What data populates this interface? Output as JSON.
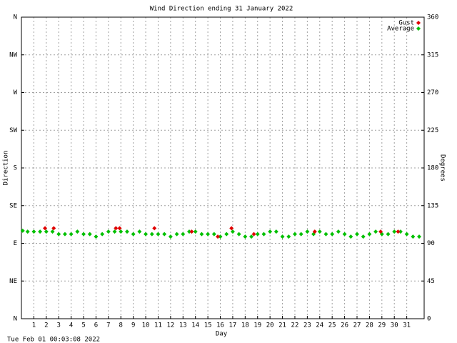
{
  "chart_data": {
    "type": "scatter",
    "title": "Wind Direction ending 31 January 2022",
    "xlabel": "Day",
    "ylabel": "Direction",
    "y2label": "Degrees",
    "footer": "Tue Feb 01 00:03:08 2022",
    "xlim": [
      0,
      32.4
    ],
    "xticks": [
      1,
      2,
      3,
      4,
      5,
      6,
      7,
      8,
      9,
      10,
      11,
      12,
      13,
      14,
      15,
      16,
      17,
      18,
      19,
      20,
      21,
      22,
      23,
      24,
      25,
      26,
      27,
      28,
      29,
      30,
      31
    ],
    "ylim": [
      0,
      360
    ],
    "yticks": [
      {
        "value": 0,
        "label": "N"
      },
      {
        "value": 45,
        "label": "NE"
      },
      {
        "value": 90,
        "label": "E"
      },
      {
        "value": 135,
        "label": "SE"
      },
      {
        "value": 180,
        "label": "S"
      },
      {
        "value": 225,
        "label": "SW"
      },
      {
        "value": 270,
        "label": "W"
      },
      {
        "value": 315,
        "label": "NW"
      },
      {
        "value": 360,
        "label": "N"
      }
    ],
    "y2lim": [
      0,
      360
    ],
    "y2ticks": [
      0,
      45,
      90,
      135,
      180,
      225,
      270,
      315,
      360
    ],
    "grid": true,
    "legend": "upper right",
    "series": [
      {
        "name": "Average",
        "color": "#00c000",
        "x": [
          0.1,
          0.5,
          1.0,
          1.5,
          2.0,
          2.5,
          3.0,
          3.5,
          4.0,
          4.5,
          5.0,
          5.5,
          6.0,
          6.5,
          7.0,
          7.5,
          8.0,
          8.5,
          9.0,
          9.5,
          10.0,
          10.5,
          11.0,
          11.5,
          12.0,
          12.5,
          13.0,
          13.5,
          14.0,
          14.5,
          15.0,
          15.5,
          16.0,
          16.5,
          17.0,
          17.5,
          18.0,
          18.5,
          19.0,
          19.5,
          20.0,
          20.5,
          21.0,
          21.5,
          22.0,
          22.5,
          23.0,
          23.5,
          24.0,
          24.5,
          25.0,
          25.5,
          26.0,
          26.5,
          27.0,
          27.5,
          28.0,
          28.5,
          29.0,
          29.5,
          30.0,
          30.5,
          31.0,
          31.5,
          32.0
        ],
        "values": [
          105,
          104,
          104,
          104,
          104,
          104,
          101,
          101,
          101,
          104,
          101,
          101,
          98,
          101,
          104,
          104,
          104,
          104,
          101,
          104,
          101,
          101,
          101,
          101,
          98,
          101,
          101,
          104,
          104,
          101,
          101,
          101,
          98,
          101,
          104,
          101,
          98,
          98,
          101,
          101,
          104,
          104,
          98,
          98,
          101,
          101,
          104,
          101,
          104,
          101,
          101,
          104,
          101,
          98,
          101,
          98,
          101,
          104,
          101,
          101,
          104,
          104,
          101,
          98,
          98
        ]
      },
      {
        "name": "Gust",
        "color": "#e00000",
        "x": [
          1.9,
          2.6,
          7.6,
          7.9,
          10.7,
          13.7,
          15.8,
          16.9,
          18.7,
          23.6,
          28.9,
          30.3
        ],
        "values": [
          108,
          108,
          108,
          108,
          108,
          104,
          98,
          108,
          101,
          104,
          104,
          104
        ]
      }
    ]
  }
}
